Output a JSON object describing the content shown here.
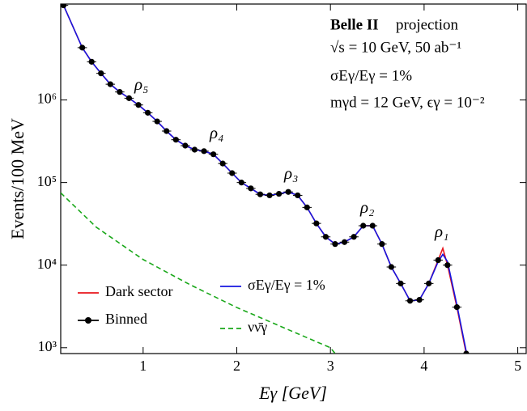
{
  "chart_data": {
    "type": "line",
    "xlabel": "Eγ [GeV]",
    "ylabel": "Events/100 MeV",
    "log_y": true,
    "xlim": [
      0.12,
      5.09
    ],
    "ylim": [
      850,
      14500000
    ],
    "xticks": [
      1,
      2,
      3,
      4,
      5
    ],
    "yticks": [
      {
        "value": 1000,
        "label": "10³"
      },
      {
        "value": 10000,
        "label": "10⁴"
      },
      {
        "value": 100000,
        "label": "10⁵"
      },
      {
        "value": 1000000,
        "label": "10⁶"
      }
    ],
    "annotations": [
      "Belle II",
      "projection",
      "√s = 10 GeV,  50 ab⁻¹",
      "σEγ/Eγ = 1%",
      "mγd = 12 GeV,  ϵγ = 10⁻²",
      "ρ₅",
      "ρ₄",
      "ρ₃",
      "ρ₂",
      "ρ₁"
    ],
    "series": [
      {
        "name": "Dark sector",
        "color": "#e8141c",
        "style": "line",
        "x": [
          0.12,
          0.15,
          0.35,
          0.45,
          0.55,
          0.65,
          0.75,
          0.85,
          0.95,
          1.05,
          1.15,
          1.25,
          1.35,
          1.45,
          1.55,
          1.65,
          1.75,
          1.85,
          1.95,
          2.05,
          2.15,
          2.25,
          2.35,
          2.45,
          2.55,
          2.65,
          2.75,
          2.85,
          2.95,
          3.05,
          3.15,
          3.25,
          3.35,
          3.45,
          3.55,
          3.65,
          3.75,
          3.85,
          3.95,
          4.05,
          4.15,
          4.2,
          4.25,
          4.35,
          4.45
        ],
        "values": [
          14500000,
          14000000,
          4300000,
          2900000,
          2100000,
          1550000,
          1250000,
          1050000,
          870000,
          700000,
          550000,
          420000,
          330000,
          280000,
          250000,
          240000,
          220000,
          170000,
          130000,
          100000,
          85000,
          72000,
          70000,
          73000,
          77000,
          70000,
          50000,
          32000,
          22000,
          18000,
          19000,
          22000,
          30000,
          30000,
          18000,
          9500,
          6000,
          3700,
          3800,
          6000,
          11500,
          16000,
          10000,
          3100,
          850
        ]
      },
      {
        "name": "Binned",
        "color": "#000000",
        "style": "points",
        "x": [
          0.15,
          0.35,
          0.45,
          0.55,
          0.65,
          0.75,
          0.85,
          0.95,
          1.05,
          1.15,
          1.25,
          1.35,
          1.45,
          1.55,
          1.65,
          1.75,
          1.85,
          1.95,
          2.05,
          2.15,
          2.25,
          2.35,
          2.45,
          2.55,
          2.65,
          2.75,
          2.85,
          2.95,
          3.05,
          3.15,
          3.25,
          3.35,
          3.45,
          3.55,
          3.65,
          3.75,
          3.85,
          3.95,
          4.05,
          4.15,
          4.25,
          4.35,
          4.45
        ],
        "values": [
          14000000,
          4300000,
          2900000,
          2100000,
          1550000,
          1250000,
          1050000,
          870000,
          700000,
          550000,
          420000,
          330000,
          280000,
          250000,
          240000,
          220000,
          170000,
          130000,
          100000,
          85000,
          72000,
          70000,
          73000,
          77000,
          70000,
          50000,
          32000,
          22000,
          18000,
          19000,
          22000,
          30000,
          30000,
          18000,
          9500,
          6000,
          3700,
          3800,
          6000,
          11500,
          10000,
          3100,
          850
        ]
      },
      {
        "name": "σEγ/Eγ = 1%",
        "color": "#1616e0",
        "style": "line",
        "x": [
          0.12,
          0.15,
          0.35,
          0.45,
          0.55,
          0.65,
          0.75,
          0.85,
          0.95,
          1.05,
          1.15,
          1.25,
          1.35,
          1.45,
          1.55,
          1.65,
          1.75,
          1.85,
          1.95,
          2.05,
          2.15,
          2.25,
          2.35,
          2.45,
          2.55,
          2.65,
          2.75,
          2.85,
          2.95,
          3.05,
          3.15,
          3.25,
          3.35,
          3.45,
          3.55,
          3.65,
          3.75,
          3.85,
          3.95,
          4.05,
          4.15,
          4.2,
          4.25,
          4.35,
          4.45
        ],
        "values": [
          14500000,
          14000000,
          4300000,
          2900000,
          2100000,
          1550000,
          1250000,
          1050000,
          870000,
          700000,
          550000,
          420000,
          330000,
          280000,
          250000,
          240000,
          220000,
          170000,
          130000,
          100000,
          85000,
          72000,
          70000,
          73000,
          77000,
          70000,
          50000,
          32000,
          22000,
          18000,
          19000,
          22000,
          30000,
          30000,
          18000,
          9500,
          6000,
          3700,
          3800,
          6000,
          11000,
          13500,
          11000,
          3300,
          900
        ]
      },
      {
        "name": "νν̄γ",
        "color": "#1aa81a",
        "style": "dashed",
        "x": [
          0.12,
          0.5,
          1,
          1.5,
          2,
          2.5,
          3,
          3.05
        ],
        "values": [
          75000,
          28800,
          11700,
          5800,
          3070,
          1750,
          1000,
          850
        ]
      }
    ]
  }
}
